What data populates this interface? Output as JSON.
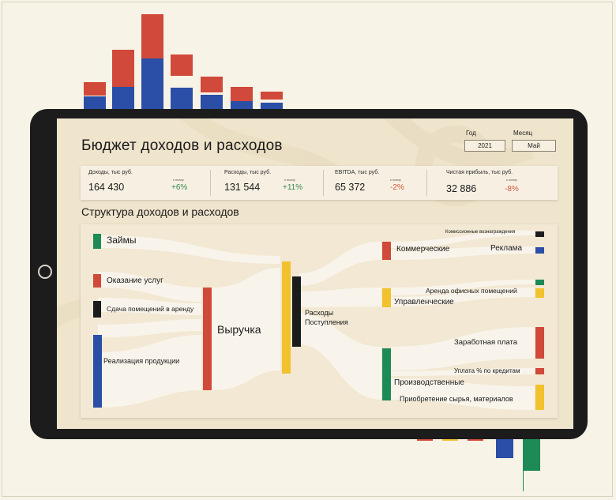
{
  "title": "Бюджет доходов и расходов",
  "filters": {
    "year_label": "Год",
    "year_value": "2021",
    "month_label": "Месяц",
    "month_value": "Май"
  },
  "kpis": [
    {
      "label": "Доходы, тыс руб.",
      "value": "164 430",
      "sub": "к плану",
      "pct": "+6%",
      "color": "#3a8a55"
    },
    {
      "label": "Расходы, тыс руб.",
      "value": "131 544",
      "sub": "к плану",
      "pct": "+11%",
      "color": "#3a8a55"
    },
    {
      "label": "EBITDA, тыс руб.",
      "value": "65 372",
      "sub": "к плану",
      "pct": "-2%",
      "color": "#d0583a"
    },
    {
      "label": "Чистая прибыль, тыс руб.",
      "value": "32 886",
      "sub": "к плану",
      "pct": "-8%",
      "color": "#d0583a"
    }
  ],
  "section_title": "Структура доходов и расходов",
  "sankey": {
    "sources": [
      {
        "label": "Займы",
        "color": "#1e8a55"
      },
      {
        "label": "Оказание услуг",
        "color": "#d0493a"
      },
      {
        "label": "Сдача помещений в аренду",
        "color": "#1c1c1c"
      },
      {
        "label": "Реализация продукции",
        "color": "#2b4ea6"
      }
    ],
    "revenue": {
      "label": "Выручка",
      "color": "#d0493a"
    },
    "flows": {
      "label_line1": "Расходы",
      "label_line2": "Поступления",
      "color_in": "#f2c12e",
      "color_out": "#1c1c1c"
    },
    "groups": [
      {
        "label": "Коммерческие",
        "color": "#d0493a"
      },
      {
        "label": "Управленческие",
        "color": "#f2c12e"
      },
      {
        "label": "Производственные",
        "color": "#1e8a55"
      }
    ],
    "items": [
      {
        "label": "Комиссионные вознаграждения",
        "color": "#1c1c1c"
      },
      {
        "label": "Реклама",
        "color": "#2b4ea6"
      },
      {
        "label": "Аренда офисных помещений",
        "color": "#1e8a55"
      },
      {
        "label": "",
        "color": "#f2c12e"
      },
      {
        "label": "Заработная плата",
        "color": "#d0493a"
      },
      {
        "label": "Уплата % по кредитам",
        "color": "#d0493a"
      },
      {
        "label": "Приобретение сырья, материалов",
        "color": "#f2c12e"
      }
    ]
  },
  "decor": {
    "bar_red": "#d0493a",
    "bar_blue": "#2b4ea6",
    "bar_green": "#1e8a55",
    "bar_yellow": "#f2c12e"
  }
}
